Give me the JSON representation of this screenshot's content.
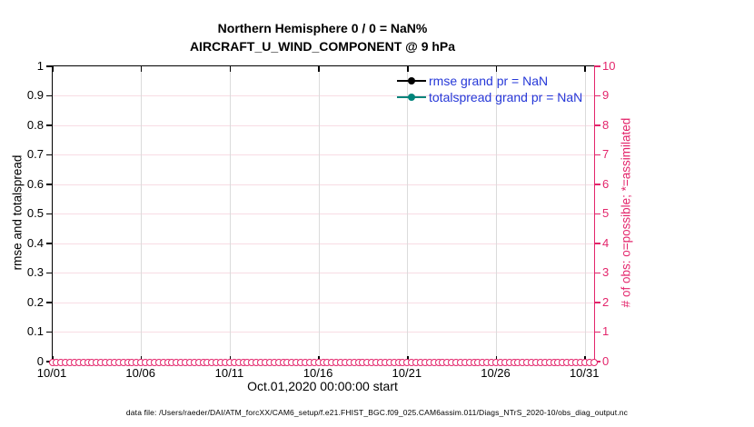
{
  "header": {
    "title_line1": "Northern Hemisphere 0 / 0 = NaN%",
    "title_line2": "AIRCRAFT_U_WIND_COMPONENT @ 9 hPa"
  },
  "legend": {
    "entries": [
      {
        "label": "rmse grand pr = NaN",
        "color": "#000000"
      },
      {
        "label": "totalspread grand pr = NaN",
        "color": "#00847b"
      }
    ],
    "text_color": "#2638d8"
  },
  "axes": {
    "left": {
      "label": "rmse and totalspread",
      "ticks": [
        "0",
        "0.1",
        "0.2",
        "0.3",
        "0.4",
        "0.5",
        "0.6",
        "0.7",
        "0.8",
        "0.9",
        "1"
      ],
      "color": "#000000"
    },
    "right": {
      "label": "# of obs: o=possible; *=assimilated",
      "ticks": [
        "0",
        "1",
        "2",
        "3",
        "4",
        "5",
        "6",
        "7",
        "8",
        "9",
        "10"
      ],
      "color": "#e3256b"
    },
    "x": {
      "label": "Oct.01,2020 00:00:00 start",
      "ticks": [
        "10/01",
        "10/06",
        "10/11",
        "10/16",
        "10/21",
        "10/26",
        "10/31"
      ]
    }
  },
  "footer": {
    "data_file": "data file: /Users/raeder/DAI/ATM_forcXX/CAM6_setup/f.e21.FHIST_BGC.f09_025.CAM6assim.011/Diags_NTrS_2020-10/obs_diag_output.nc"
  },
  "colors": {
    "axis_pink": "#e3256b",
    "grid_pink": "#f8dce4",
    "grid_gray": "#dbdbdb",
    "legend_blue": "#2638d8",
    "rmse_black": "#000000",
    "totalspread_teal": "#00847b",
    "background": "#ffffff"
  },
  "chart_data": {
    "type": "line",
    "title": "Northern Hemisphere 0 / 0 = NaN%",
    "subtitle": "AIRCRAFT_U_WIND_COMPONENT @ 9 hPa",
    "xlabel": "Oct.01,2020 00:00:00 start",
    "ylabel_left": "rmse and totalspread",
    "ylabel_right": "# of obs: o=possible; *=assimilated",
    "ylim_left": [
      0,
      1
    ],
    "ylim_right": [
      0,
      10
    ],
    "x_tick_labels": [
      "10/01",
      "10/06",
      "10/11",
      "10/16",
      "10/21",
      "10/26",
      "10/31"
    ],
    "x_tick_days": [
      0,
      5,
      10,
      15,
      20,
      25,
      30
    ],
    "x_range_days": [
      0,
      30.5
    ],
    "grid": true,
    "legend_position": "top-right",
    "series": [
      {
        "name": "rmse grand pr = NaN",
        "axis": "left",
        "color": "#000000",
        "values": "NaN (no curve plotted)"
      },
      {
        "name": "totalspread grand pr = NaN",
        "axis": "left",
        "color": "#00847b",
        "values": "NaN (no curve plotted)"
      },
      {
        "name": "# of obs possible (o markers)",
        "axis": "right",
        "marker": "o",
        "color": "#e3256b",
        "constant_value": 0,
        "n_points": 123
      },
      {
        "name": "# of obs assimilated (* markers)",
        "axis": "right",
        "marker": "*",
        "color": "#e3256b",
        "constant_value": 0,
        "n_points": 123
      }
    ]
  }
}
